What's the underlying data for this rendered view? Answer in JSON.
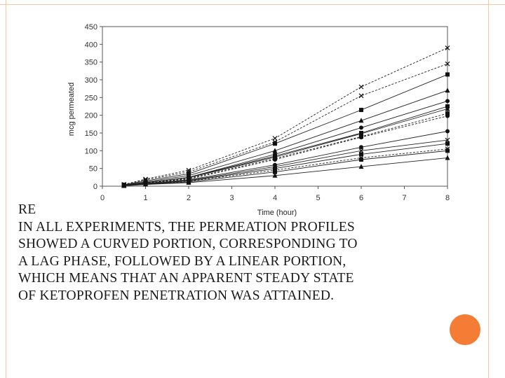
{
  "slide": {
    "heading": "RE",
    "body_lines": [
      "IN ALL EXPERIMENTS, THE PERMEATION PROFILES",
      "SHOWED A CURVED PORTION, CORRESPONDING TO",
      "A LAG PHASE, FOLLOWED BY A LINEAR PORTION,",
      "WHICH MEANS THAT AN APPARENT STEADY STATE",
      "OF KETOPROFEN PENETRATION WAS ATTAINED."
    ],
    "accent_color": "#f47c34",
    "rule_color": "#f2c9a8"
  },
  "chart_data": {
    "type": "line",
    "xlabel": "Time (hour)",
    "ylabel": "mcg permeated",
    "xlim": [
      0,
      8
    ],
    "ylim": [
      0,
      450
    ],
    "x_ticks": [
      0,
      1,
      2,
      3,
      4,
      5,
      6,
      7,
      8
    ],
    "y_ticks": [
      0,
      50,
      100,
      150,
      200,
      250,
      300,
      350,
      400,
      450
    ],
    "grid": false,
    "legend": "none",
    "x": [
      0.5,
      1,
      2,
      4,
      6,
      8
    ],
    "series": [
      {
        "marker": "x",
        "dash": true,
        "values": [
          5,
          20,
          45,
          135,
          280,
          390
        ]
      },
      {
        "marker": "x",
        "dash": true,
        "values": [
          5,
          18,
          40,
          125,
          255,
          345
        ]
      },
      {
        "marker": "square",
        "dash": false,
        "values": [
          4,
          15,
          35,
          120,
          215,
          315
        ]
      },
      {
        "marker": "triangle",
        "dash": false,
        "values": [
          3,
          12,
          30,
          100,
          185,
          270
        ]
      },
      {
        "marker": "circle",
        "dash": false,
        "values": [
          3,
          10,
          25,
          90,
          165,
          240
        ]
      },
      {
        "marker": "square",
        "dash": false,
        "values": [
          3,
          10,
          25,
          85,
          150,
          225
        ]
      },
      {
        "marker": "triangle",
        "dash": false,
        "values": [
          3,
          10,
          24,
          82,
          148,
          218
        ]
      },
      {
        "marker": "square",
        "dash": true,
        "values": [
          3,
          9,
          22,
          78,
          140,
          205
        ]
      },
      {
        "marker": "circle",
        "dash": true,
        "values": [
          2,
          8,
          20,
          75,
          138,
          198
        ]
      },
      {
        "marker": "circle",
        "dash": false,
        "values": [
          2,
          8,
          18,
          60,
          110,
          155
        ]
      },
      {
        "marker": "x",
        "dash": false,
        "values": [
          2,
          7,
          16,
          55,
          100,
          130
        ]
      },
      {
        "marker": "square",
        "dash": false,
        "values": [
          2,
          6,
          15,
          50,
          90,
          120
        ]
      },
      {
        "marker": "x",
        "dash": true,
        "values": [
          2,
          6,
          14,
          45,
          80,
          105
        ]
      },
      {
        "marker": "square",
        "dash": false,
        "values": [
          2,
          5,
          12,
          40,
          75,
          100
        ]
      },
      {
        "marker": "triangle",
        "dash": false,
        "values": [
          1,
          5,
          10,
          30,
          55,
          80
        ]
      }
    ]
  }
}
